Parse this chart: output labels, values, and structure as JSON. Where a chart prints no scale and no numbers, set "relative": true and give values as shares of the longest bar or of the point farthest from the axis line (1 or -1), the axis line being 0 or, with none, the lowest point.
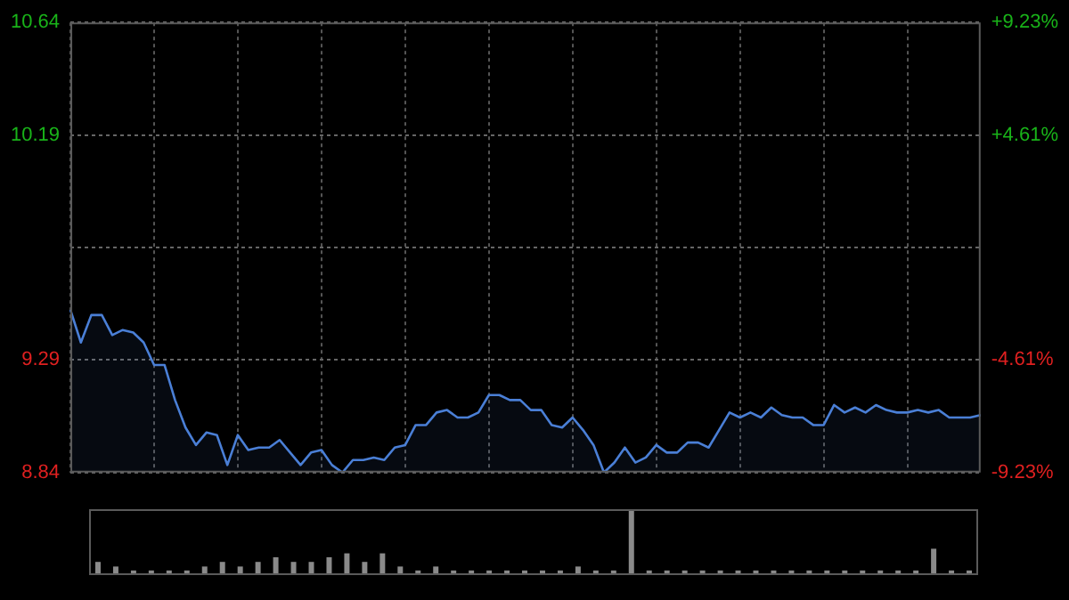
{
  "chart_data": [
    {
      "type": "area",
      "tick_labels": "y",
      "grid": true,
      "legend": false,
      "marker": "none",
      "line_style": "solid",
      "categories": [
        null,
        null,
        null,
        null,
        null,
        null,
        null,
        null,
        null,
        null,
        null,
        null,
        null,
        null,
        null,
        null,
        null,
        null,
        null,
        null,
        null,
        null,
        null,
        null,
        null,
        null,
        null,
        null,
        null,
        null,
        null,
        null,
        null,
        null,
        null,
        null,
        null,
        null,
        null,
        null,
        null,
        null,
        null,
        null,
        null,
        null,
        null,
        null,
        null,
        null,
        null,
        null,
        null,
        null,
        null,
        null,
        null,
        null,
        null,
        null,
        null,
        null,
        null,
        null,
        null,
        null,
        null,
        null,
        null,
        null,
        null,
        null,
        null,
        null,
        null,
        null,
        null,
        null,
        null,
        null,
        null,
        null,
        null,
        null,
        null,
        null,
        null,
        null
      ],
      "ylim": [
        8.84,
        10.64
      ],
      "yticks": [
        8.84,
        9.29,
        {
          "value": 9.74,
          "label": null
        },
        10.19,
        10.64
      ],
      "y2lim": [
        -9.23,
        9.23
      ],
      "y2ticks": [
        {
          "value": -9.23,
          "label": "-9.23%"
        },
        {
          "value": -4.61,
          "label": "-4.61%"
        },
        {
          "value": 0,
          "label": null
        },
        {
          "value": 4.61,
          "label": "+4.61%"
        },
        {
          "value": 9.23,
          "label": "+9.23%"
        }
      ],
      "series": [
        {
          "color": "#4a7fd6",
          "values": [
            9.49,
            9.36,
            9.47,
            9.47,
            9.39,
            9.41,
            9.4,
            9.36,
            9.27,
            9.27,
            9.13,
            9.02,
            8.95,
            9.0,
            8.99,
            8.87,
            8.99,
            8.93,
            8.94,
            8.94,
            8.97,
            8.92,
            8.87,
            8.92,
            8.93,
            8.87,
            8.84,
            8.89,
            8.89,
            8.9,
            8.89,
            8.94,
            8.95,
            9.03,
            9.03,
            9.08,
            9.09,
            9.06,
            9.06,
            9.08,
            9.15,
            9.15,
            9.13,
            9.13,
            9.09,
            9.09,
            9.03,
            9.02,
            9.06,
            9.01,
            8.95,
            8.84,
            8.88,
            8.94,
            8.88,
            8.9,
            8.95,
            8.92,
            8.92,
            8.96,
            8.96,
            8.94,
            9.01,
            9.08,
            9.06,
            9.08,
            9.06,
            9.1,
            9.07,
            9.06,
            9.06,
            9.03,
            9.03,
            9.11,
            9.08,
            9.1,
            9.08,
            9.11,
            9.09,
            9.08,
            9.08,
            9.09,
            9.08,
            9.09,
            9.06,
            9.06,
            9.06,
            9.07
          ]
        }
      ]
    },
    {
      "type": "bar",
      "relative": true,
      "legend": false,
      "tick_labels": false,
      "categories": [
        null,
        null,
        null,
        null,
        null,
        null,
        null,
        null,
        null,
        null,
        null,
        null,
        null,
        null,
        null,
        null,
        null,
        null,
        null,
        null,
        null,
        null,
        null,
        null,
        null,
        null,
        null,
        null,
        null,
        null,
        null,
        null,
        null,
        null,
        null,
        null,
        null,
        null,
        null,
        null,
        null,
        null,
        null,
        null,
        null,
        null,
        null,
        null,
        null,
        null
      ],
      "series": [
        {
          "color": "#8a8a8a",
          "values": [
            0.2,
            0.13,
            0.07,
            0.07,
            0.07,
            0.07,
            0.13,
            0.2,
            0.13,
            0.2,
            0.27,
            0.2,
            0.2,
            0.27,
            0.33,
            0.2,
            0.33,
            0.13,
            0.07,
            0.13,
            0.07,
            0.07,
            0.07,
            0.07,
            0.07,
            0.07,
            0.07,
            0.13,
            0.07,
            0.07,
            1,
            0.07,
            0.07,
            0.07,
            0.07,
            0.07,
            0.07,
            0.07,
            0.07,
            0.07,
            0.07,
            0.07,
            0.07,
            0.07,
            0.07,
            0.07,
            0.07,
            0.4,
            0.07,
            0.07
          ]
        }
      ]
    }
  ]
}
